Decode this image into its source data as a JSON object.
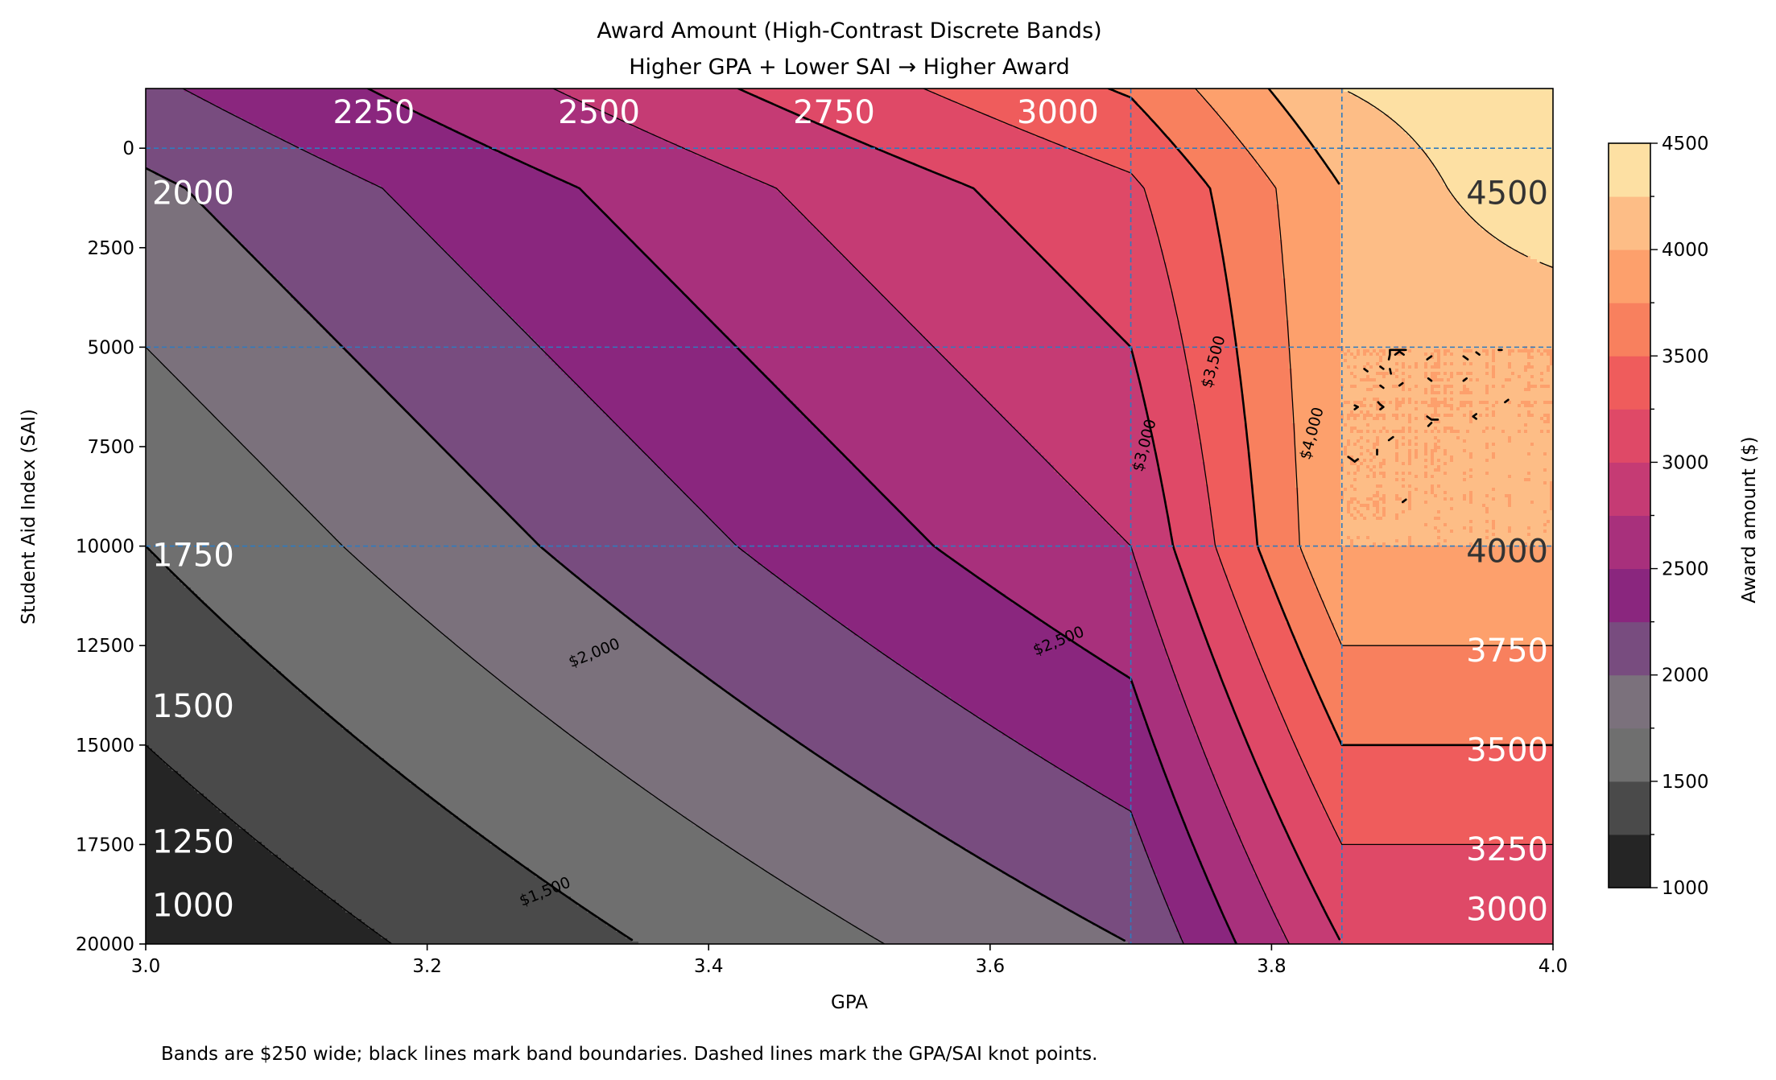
{
  "chart_data": {
    "type": "contour",
    "title": "Award Amount (High-Contrast Discrete Bands)",
    "subtitle": "Higher GPA + Lower SAI → Higher Award",
    "xlabel": "GPA",
    "ylabel": "Student Aid Index (SAI)",
    "colorbar_label": "Award amount ($)",
    "footnote": "Bands are $250 wide; black lines mark band boundaries.  Dashed lines mark the GPA/SAI knot points.",
    "xlim": [
      3.0,
      4.0
    ],
    "ylim": [
      -1500,
      20000
    ],
    "y_inverted": true,
    "x_ticks": [
      "3.0",
      "3.2",
      "3.4",
      "3.6",
      "3.8",
      "4.0"
    ],
    "x_tick_values": [
      3.0,
      3.2,
      3.4,
      3.6,
      3.8,
      4.0
    ],
    "y_ticks": [
      "0",
      "2500",
      "5000",
      "7500",
      "10000",
      "12500",
      "15000",
      "17500",
      "20000"
    ],
    "y_tick_values": [
      0,
      2500,
      5000,
      7500,
      10000,
      12500,
      15000,
      17500,
      20000
    ],
    "colorbar_ticks": [
      "1000",
      "1500",
      "2000",
      "2500",
      "3000",
      "3500",
      "4000",
      "4500"
    ],
    "colorbar_range": [
      1000,
      4500
    ],
    "band_width": 250,
    "knots": {
      "gpa": [
        3.0,
        3.7,
        3.85,
        4.0
      ],
      "sai": [
        0,
        5000,
        10000,
        20000
      ]
    },
    "award_grid": {
      "gpa": [
        3.0,
        3.7,
        3.85,
        4.0
      ],
      "sai": [
        -1500,
        1000,
        5000,
        10000,
        20000
      ],
      "values": [
        [
          2200,
          3530,
          4250,
          4500
        ],
        [
          1950,
          3200,
          4000,
          4500
        ],
        [
          1750,
          3000,
          4000,
          4000
        ],
        [
          1500,
          2750,
          4000,
          4000
        ],
        [
          1000,
          2000,
          3000,
          3000
        ]
      ]
    },
    "band_colors": [
      {
        "range": [
          1000,
          1250
        ],
        "color": "#252525"
      },
      {
        "range": [
          1250,
          1500
        ],
        "color": "#4a4a4a"
      },
      {
        "range": [
          1500,
          1750
        ],
        "color": "#6f6f6f"
      },
      {
        "range": [
          1750,
          2000
        ],
        "color": "#7b717c"
      },
      {
        "range": [
          2000,
          2250
        ],
        "color": "#784c7f"
      },
      {
        "range": [
          2250,
          2500
        ],
        "color": "#8a267e"
      },
      {
        "range": [
          2500,
          2750
        ],
        "color": "#a8307c"
      },
      {
        "range": [
          2750,
          3000
        ],
        "color": "#c53b74"
      },
      {
        "range": [
          3000,
          3250
        ],
        "color": "#df4967"
      },
      {
        "range": [
          3250,
          3500
        ],
        "color": "#ef5c5c"
      },
      {
        "range": [
          3500,
          3750
        ],
        "color": "#f8805e"
      },
      {
        "range": [
          3750,
          4000
        ],
        "color": "#fda06c"
      },
      {
        "range": [
          4000,
          4250
        ],
        "color": "#fdbd86"
      },
      {
        "range": [
          4250,
          4500
        ],
        "color": "#fde0a3"
      }
    ],
    "band_labels_top": [
      {
        "text": "2250",
        "gpa": 3.133
      },
      {
        "text": "2500",
        "gpa": 3.293
      },
      {
        "text": "2750",
        "gpa": 3.46
      },
      {
        "text": "3000",
        "gpa": 3.619
      }
    ],
    "band_labels_left": [
      {
        "text": "2000",
        "sai": 1400
      },
      {
        "text": "1750",
        "sai": 10500
      },
      {
        "text": "1500",
        "sai": 14300
      },
      {
        "text": "1250",
        "sai": 17700
      },
      {
        "text": "1000",
        "sai": 19300
      }
    ],
    "band_labels_right": [
      {
        "text": "4500",
        "sai": 1400
      },
      {
        "text": "4000",
        "sai": 10400
      },
      {
        "text": "3750",
        "sai": 12900
      },
      {
        "text": "3500",
        "sai": 15400
      },
      {
        "text": "3250",
        "sai": 17900
      },
      {
        "text": "3000",
        "sai": 19400
      }
    ],
    "contour_labels": [
      {
        "text": "$1,500",
        "gpa": 3.285,
        "sai": 18800,
        "angle": -22
      },
      {
        "text": "$2,000",
        "gpa": 3.32,
        "sai": 12800,
        "angle": -22
      },
      {
        "text": "$2,500",
        "gpa": 3.65,
        "sai": 12500,
        "angle": -22
      },
      {
        "text": "$3,000",
        "gpa": 3.713,
        "sai": 7500,
        "angle": -75
      },
      {
        "text": "$3,500",
        "gpa": 3.762,
        "sai": 5400,
        "angle": -75
      },
      {
        "text": "$4,000",
        "gpa": 3.832,
        "sai": 7200,
        "angle": -75
      }
    ],
    "grid": false,
    "legend": "colorbar-right"
  }
}
